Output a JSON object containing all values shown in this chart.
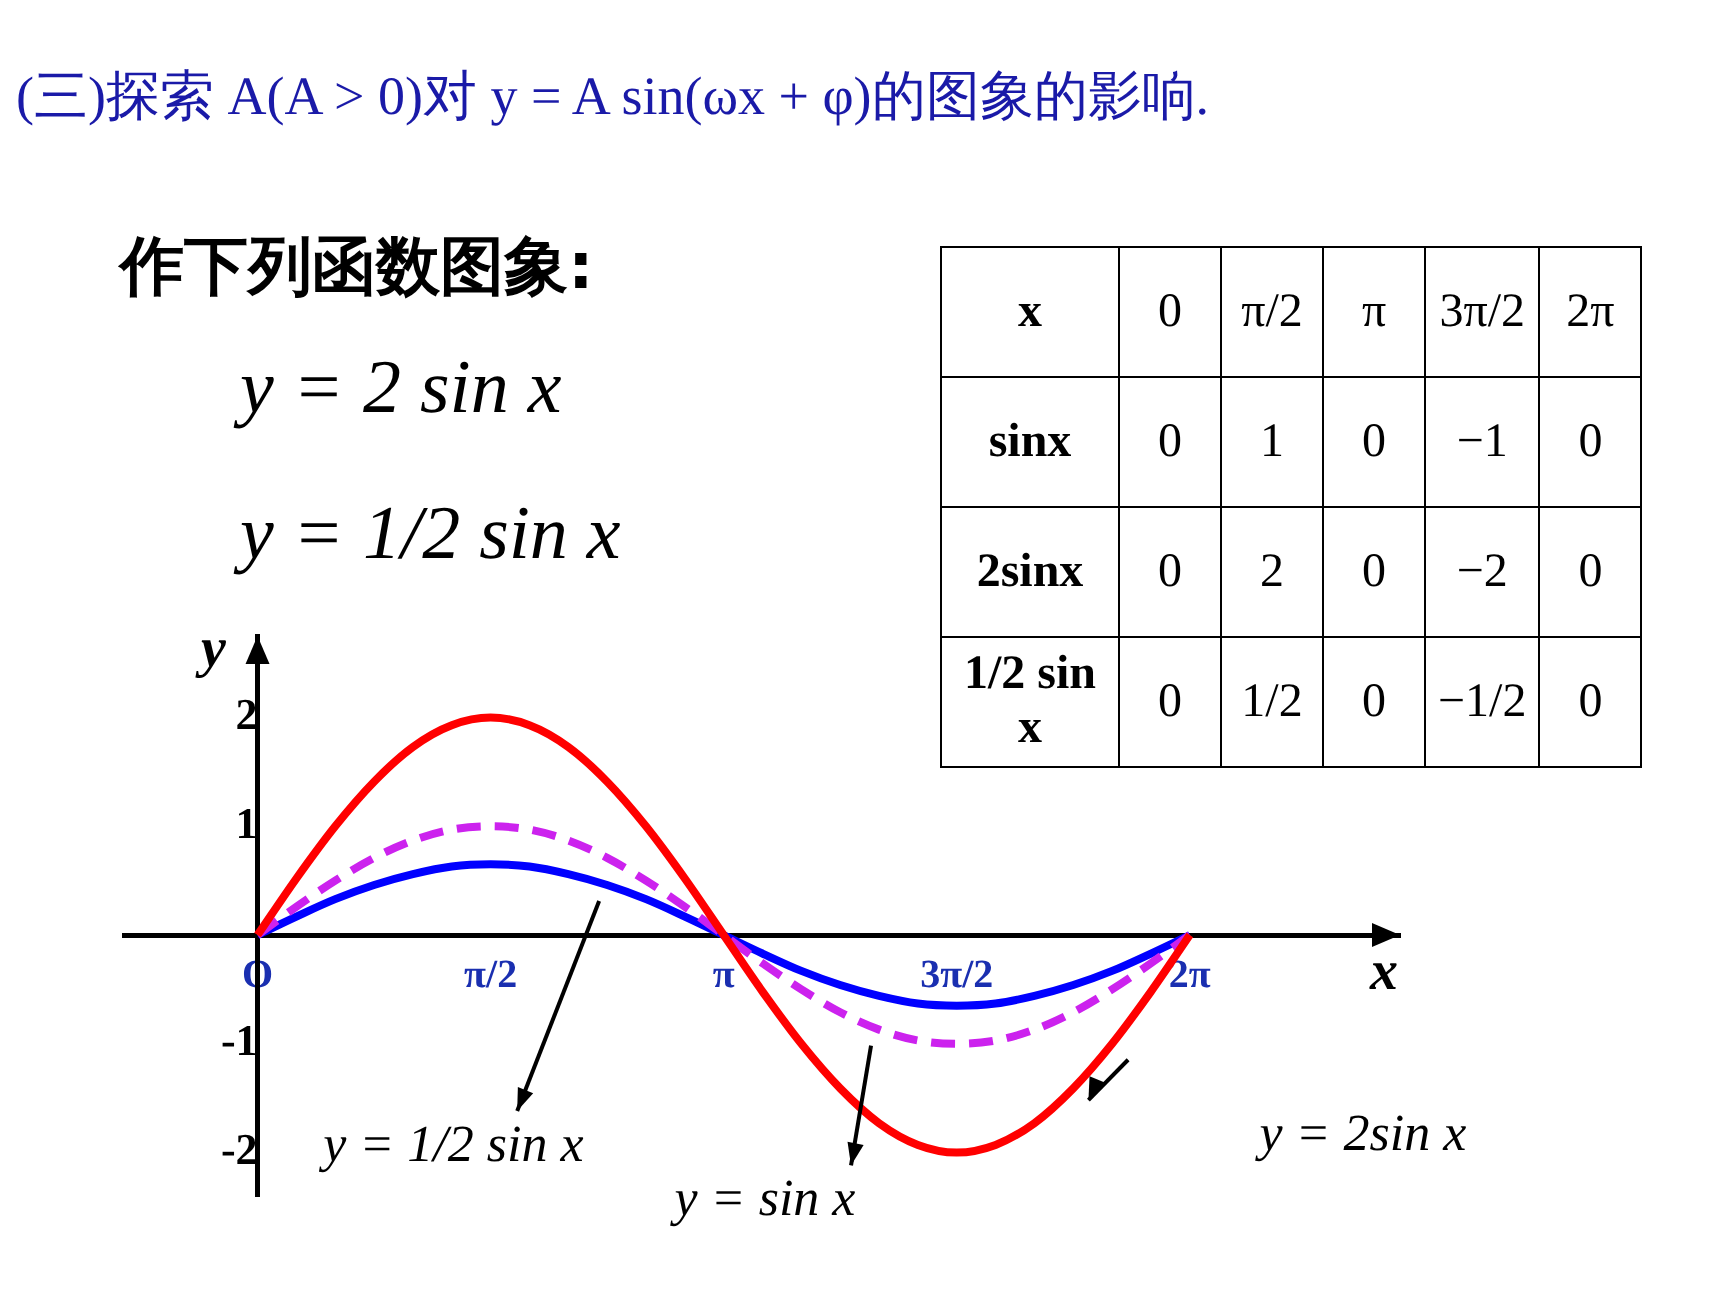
{
  "chart_data": {
    "type": "line",
    "title": "(三)探索 A(A > 0)对 y = A sin(ωx + φ)的图象的影响.",
    "xlabel": "x",
    "ylabel": "y",
    "annotations": [
      "作下列函数图象:",
      "y = 2 sin x",
      "y = 1/2 sin x",
      "x",
      "0",
      "π/2",
      "π",
      "3π/2",
      "2π",
      "sinx",
      "0",
      "1",
      "0",
      "−1",
      "0",
      "2sinx",
      "0",
      "2",
      "0",
      "−2",
      "0",
      "1/2 sin x",
      "0",
      "1/2",
      "0",
      "−1/2",
      "0"
    ],
    "xlim": [
      -0.9,
      7.7
    ],
    "ylim": [
      -2.4,
      2.75
    ],
    "xticks": [
      {
        "value": 0,
        "label": "O"
      },
      {
        "value": 1.5708,
        "label": "π/2"
      },
      {
        "value": 3.1416,
        "label": "π"
      },
      {
        "value": 4.7124,
        "label": "3π/2"
      },
      {
        "value": 6.2832,
        "label": "2π"
      }
    ],
    "yticks": [
      -2,
      -1,
      1,
      2
    ],
    "grid": false,
    "legend": false,
    "marker": "none",
    "x": [
      0,
      0.2618,
      0.5236,
      0.7854,
      1.0472,
      1.309,
      1.5708,
      1.8326,
      2.0944,
      2.3562,
      2.618,
      2.8798,
      3.1416,
      3.4034,
      3.6652,
      3.927,
      4.1888,
      4.4506,
      4.7124,
      4.9742,
      5.236,
      5.4978,
      5.7596,
      6.0214,
      6.2832
    ],
    "series": [
      {
        "name": "y = 2sin x",
        "color": "#ff0000",
        "line_style": "solid",
        "values": [
          0,
          0.52,
          1,
          1.41,
          1.73,
          1.93,
          2,
          1.93,
          1.73,
          1.41,
          1,
          0.52,
          0,
          -0.52,
          -1,
          -1.41,
          -1.73,
          -1.93,
          -2,
          -1.93,
          -1.73,
          -1.41,
          -1,
          -0.52,
          0
        ]
      },
      {
        "name": "y = sin x",
        "color": "#cc22ee",
        "line_style": "dashed",
        "values": [
          0,
          0.26,
          0.5,
          0.71,
          0.87,
          0.97,
          1,
          0.97,
          0.87,
          0.71,
          0.5,
          0.26,
          0,
          -0.26,
          -0.5,
          -0.71,
          -0.87,
          -0.97,
          -1,
          -0.97,
          -0.87,
          -0.71,
          -0.5,
          -0.26,
          0
        ]
      },
      {
        "name": "y = 1/2 sin x",
        "color": "#0000ff",
        "line_style": "solid",
        "values": [
          0,
          0.17,
          0.33,
          0.46,
          0.56,
          0.63,
          0.65,
          0.63,
          0.56,
          0.46,
          0.33,
          0.17,
          0,
          -0.17,
          -0.33,
          -0.46,
          -0.56,
          -0.63,
          -0.65,
          -0.63,
          -0.56,
          -0.46,
          -0.33,
          -0.17,
          0
        ]
      }
    ]
  }
}
